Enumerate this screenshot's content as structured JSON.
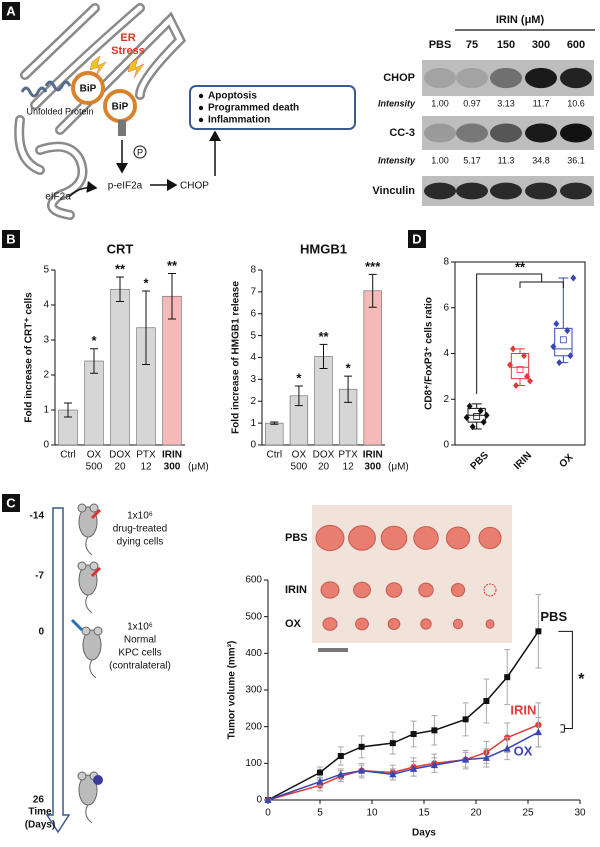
{
  "panel_labels": [
    "A",
    "B",
    "C",
    "D"
  ],
  "panel_a": {
    "er_stress": [
      "ER",
      "Stress"
    ],
    "bip": [
      "BiP",
      "BiP"
    ],
    "unfolded_protein": "Unfolded Protein",
    "phospho": "P",
    "eif2a": "eIF2a",
    "p_eif2a": "p-eIF2a",
    "chop": "CHOP",
    "outcomes": [
      "Apoptosis",
      "Programmed death",
      "Inflammation"
    ],
    "blot": {
      "treatment": "IRIN (μM)",
      "lanes": [
        "PBS",
        "75",
        "150",
        "300",
        "600"
      ],
      "rows": [
        "CHOP",
        "CC-3",
        "Vinculin"
      ],
      "intensity_label": "Intensity",
      "chop_intensity": [
        "1.00",
        "0.97",
        "3.13",
        "11.7",
        "10.6"
      ],
      "cc3_intensity": [
        "1.00",
        "5.17",
        "11.3",
        "34.8",
        "36.1"
      ]
    }
  },
  "panel_c_schematic": {
    "timepoints": [
      -14,
      -7,
      0,
      26
    ],
    "injection_1": [
      "1x10⁶",
      "drug-treated",
      "dying cells"
    ],
    "injection_2": [
      "1x10⁶",
      "Normal",
      "KPC cells",
      "(contralateral)"
    ],
    "time_label": [
      "Time",
      "(Days)"
    ],
    "photo_rows": [
      "PBS",
      "IRIN",
      "OX"
    ]
  },
  "chart_data": [
    {
      "type": "bar",
      "title": "CRT",
      "y_label": "Fold increase of CRT⁺ cells",
      "categories": [
        "Ctrl",
        "OX",
        "DOX",
        "PTX",
        "IRIN"
      ],
      "doses": [
        null,
        500,
        20,
        12,
        300
      ],
      "dose_unit": "(μM)",
      "values": [
        1.0,
        2.4,
        4.45,
        3.35,
        4.25
      ],
      "errors": [
        0.2,
        0.35,
        0.35,
        1.05,
        0.65
      ],
      "annotations": [
        null,
        "*",
        "**",
        "*",
        "**"
      ],
      "colors": [
        "#d6d6d6",
        "#d6d6d6",
        "#d6d6d6",
        "#d6d6d6",
        "#f5b9b9"
      ],
      "ylim": [
        0,
        5
      ],
      "yticks": [
        0,
        1,
        2,
        3,
        4,
        5
      ]
    },
    {
      "type": "bar",
      "title": "HMGB1",
      "y_label": "Fold increase of HMGB1 release",
      "categories": [
        "Ctrl",
        "OX",
        "DOX",
        "PTX",
        "IRIN"
      ],
      "doses": [
        null,
        500,
        20,
        12,
        300
      ],
      "dose_unit": "(μM)",
      "values": [
        1.0,
        2.25,
        4.05,
        2.55,
        7.05
      ],
      "errors": [
        0.05,
        0.45,
        0.55,
        0.6,
        0.75
      ],
      "annotations": [
        null,
        "*",
        "**",
        "*",
        "***"
      ],
      "colors": [
        "#d6d6d6",
        "#d6d6d6",
        "#d6d6d6",
        "#d6d6d6",
        "#f5b9b9"
      ],
      "ylim": [
        0,
        8
      ],
      "yticks": [
        0,
        1,
        2,
        3,
        4,
        5,
        6,
        7,
        8
      ]
    },
    {
      "type": "box",
      "y_label": "CD8⁺/FoxP3⁺ cells ratio",
      "categories": [
        "PBS",
        "IRIN",
        "OX"
      ],
      "colors": [
        "#111111",
        "#e03a3a",
        "#3a46b5"
      ],
      "boxes": [
        {
          "min": 0.7,
          "q1": 1.0,
          "median": 1.3,
          "q3": 1.6,
          "max": 1.8,
          "mean": 1.25,
          "points": [
            0.8,
            1.0,
            1.2,
            1.5,
            1.7,
            1.3
          ]
        },
        {
          "min": 2.6,
          "q1": 2.9,
          "median": 3.4,
          "q3": 4.0,
          "max": 4.2,
          "mean": 3.3,
          "points": [
            2.6,
            3.0,
            3.5,
            3.9,
            4.2,
            2.8
          ]
        },
        {
          "min": 3.6,
          "q1": 3.9,
          "median": 4.2,
          "q3": 5.1,
          "max": 7.3,
          "mean": 4.6,
          "points": [
            3.6,
            3.9,
            4.3,
            5.0,
            5.3,
            7.3
          ]
        }
      ],
      "significance": "**",
      "ylim": [
        0,
        8
      ],
      "yticks": [
        0,
        2,
        4,
        6,
        8
      ]
    },
    {
      "type": "line",
      "x_label": "Days",
      "y_label": "Tumor volume (mm³)",
      "x": [
        0,
        5,
        7,
        9,
        12,
        14,
        16,
        19,
        21,
        23,
        26
      ],
      "series": [
        {
          "name": "PBS",
          "color": "#111111",
          "marker": "square",
          "values": [
            0,
            75,
            120,
            145,
            155,
            180,
            190,
            220,
            270,
            335,
            460
          ],
          "errors": [
            0,
            15,
            25,
            30,
            30,
            35,
            40,
            45,
            60,
            75,
            100
          ]
        },
        {
          "name": "IRIN",
          "color": "#e03a3a",
          "marker": "circle",
          "values": [
            0,
            40,
            65,
            80,
            75,
            90,
            100,
            110,
            130,
            170,
            205
          ],
          "errors": [
            0,
            15,
            15,
            20,
            20,
            25,
            25,
            25,
            30,
            40,
            60
          ]
        },
        {
          "name": "OX",
          "color": "#3a46b5",
          "marker": "triangle",
          "values": [
            0,
            50,
            70,
            80,
            70,
            85,
            95,
            110,
            115,
            140,
            185
          ],
          "errors": [
            0,
            12,
            15,
            15,
            15,
            20,
            20,
            20,
            25,
            30,
            40
          ]
        }
      ],
      "significance": "*",
      "xlim": [
        0,
        30
      ],
      "xticks": [
        0,
        5,
        10,
        15,
        20,
        25,
        30
      ],
      "ylim": [
        0,
        600
      ],
      "yticks": [
        0,
        100,
        200,
        300,
        400,
        500,
        600
      ]
    }
  ]
}
